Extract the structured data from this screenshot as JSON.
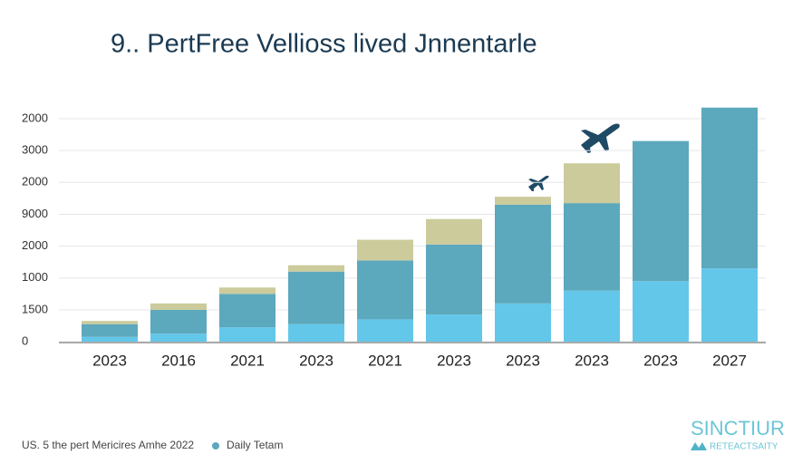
{
  "chart_data": {
    "type": "stacked-bar",
    "title": "9.. PertFree Vellioss lived Jnnentarle",
    "categories": [
      "2023",
      "2016",
      "2021",
      "2023",
      "2021",
      "2023",
      "2023",
      "2023",
      "2023",
      "2027"
    ],
    "series": [
      {
        "color": "#63c7ea",
        "values": [
          0.15,
          0.25,
          0.45,
          0.55,
          0.7,
          0.85,
          1.2,
          1.6,
          1.9,
          2.3
        ]
      },
      {
        "name": "Daily Tetam",
        "color": "#5ca8bc",
        "values": [
          0.4,
          0.75,
          1.05,
          1.65,
          1.85,
          2.2,
          3.1,
          2.75,
          4.4,
          5.05
        ]
      },
      {
        "color": "#cbcb9c",
        "values": [
          0.1,
          0.2,
          0.2,
          0.2,
          0.65,
          0.8,
          0.25,
          1.25,
          0,
          0
        ]
      }
    ],
    "ylim": [
      0,
      7.5
    ],
    "yticks": [
      {
        "value": 0,
        "label": "0"
      },
      {
        "value": 1,
        "label": "1500"
      },
      {
        "value": 2,
        "label": "1000"
      },
      {
        "value": 3,
        "label": "2000"
      },
      {
        "value": 4,
        "label": "9000"
      },
      {
        "value": 5,
        "label": "2000"
      },
      {
        "value": 6,
        "label": "3000"
      },
      {
        "value": 7,
        "label": "2000"
      }
    ],
    "grid": true,
    "caption": "US. 5 the pert Mericires Amhe 2022",
    "logo": {
      "title": "SINCTIUR",
      "subtitle": "RETEACTSAITY"
    }
  }
}
